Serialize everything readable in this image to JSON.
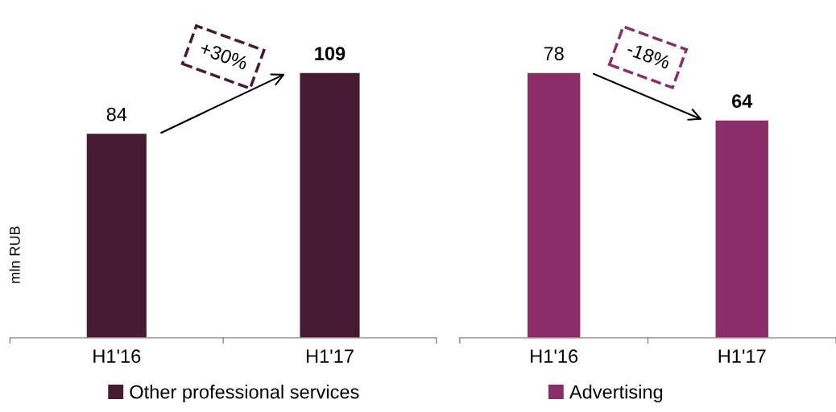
{
  "chart_data": [
    {
      "type": "bar",
      "categories": [
        "H1'16",
        "H1'17"
      ],
      "series": [
        {
          "name": "Other professional services",
          "color": "#461a33",
          "values": [
            84,
            109
          ]
        }
      ],
      "data_labels": true,
      "ylabel": "mln RUB",
      "legend": "bottom",
      "tick_labels": "x",
      "annotations": [
        "+30%"
      ]
    },
    {
      "type": "bar",
      "categories": [
        "H1'16",
        "H1'17"
      ],
      "series": [
        {
          "name": "Advertising",
          "color": "#8b2d66",
          "values": [
            78,
            64
          ]
        }
      ],
      "data_labels": true,
      "legend": "bottom",
      "tick_labels": "x",
      "annotations": [
        "-18%"
      ]
    }
  ]
}
